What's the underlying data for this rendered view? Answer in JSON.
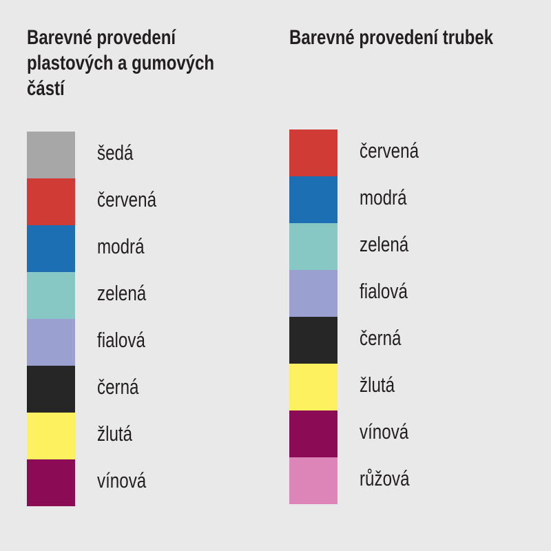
{
  "left": {
    "title_lines": [
      "Barevné provedení",
      "plastových a gumových",
      "částí"
    ],
    "items": [
      {
        "label": "šedá",
        "color": "#a7a7a7"
      },
      {
        "label": "červená",
        "color": "#d03b35"
      },
      {
        "label": "modrá",
        "color": "#1d6fb3"
      },
      {
        "label": "zelená",
        "color": "#87c8c4"
      },
      {
        "label": "fialová",
        "color": "#9aa0d0"
      },
      {
        "label": "černá",
        "color": "#262626"
      },
      {
        "label": "žlutá",
        "color": "#fdf160"
      },
      {
        "label": "vínová",
        "color": "#8c0b55"
      }
    ]
  },
  "right": {
    "title_lines": [
      "Barevné provedení trubek"
    ],
    "items": [
      {
        "label": "červená",
        "color": "#d03b35"
      },
      {
        "label": "modrá",
        "color": "#1d6fb3"
      },
      {
        "label": "zelená",
        "color": "#87c8c4"
      },
      {
        "label": "fialová",
        "color": "#9aa0d0"
      },
      {
        "label": "černá",
        "color": "#262626"
      },
      {
        "label": "žlutá",
        "color": "#fdf160"
      },
      {
        "label": "vínová",
        "color": "#8c0b55"
      },
      {
        "label": "růžová",
        "color": "#dd84b8"
      }
    ]
  }
}
